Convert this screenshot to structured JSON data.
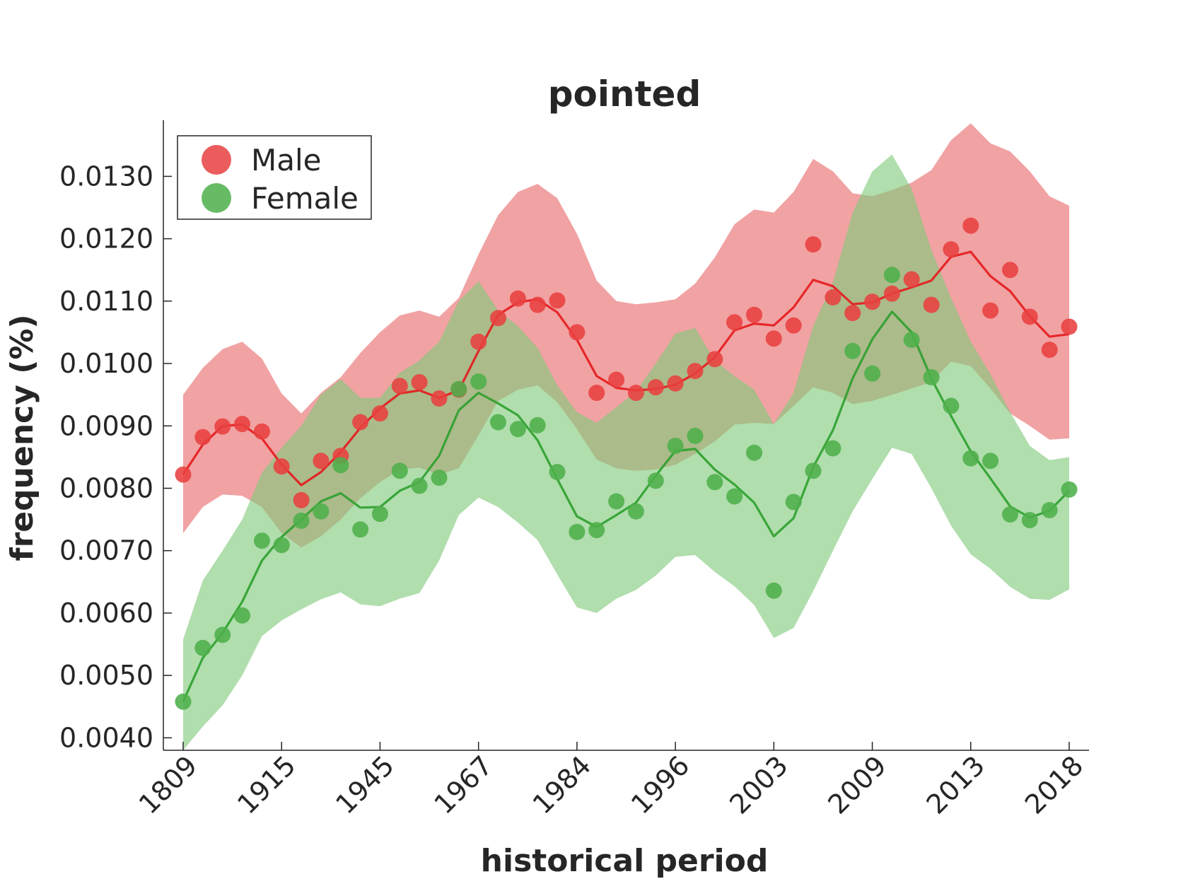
{
  "chart_data": {
    "type": "line",
    "title": "pointed",
    "xlabel": "historical period",
    "ylabel": "frequency (%)",
    "categories": [
      "1809",
      "1915",
      "1945",
      "1967",
      "1984",
      "1996",
      "2003",
      "2009",
      "2013",
      "2018"
    ],
    "ylim": [
      0.0038,
      0.0139
    ],
    "yticks": [
      "0.0040",
      "0.0050",
      "0.0060",
      "0.0070",
      "0.0080",
      "0.0090",
      "0.0100",
      "0.0110",
      "0.0120",
      "0.0130"
    ],
    "grid": false,
    "legend_position": "top-left",
    "series": [
      {
        "name": "Male",
        "color": "#e41a1c",
        "marker_color": "#e8403f",
        "band_color": "#e8696b",
        "points": [
          0.00822,
          0.00882,
          0.00899,
          0.00903,
          0.00891,
          0.00835,
          0.00781,
          0.00844,
          0.00852,
          0.00906,
          0.0092,
          0.00964,
          0.0097,
          0.00944,
          0.00958,
          0.01035,
          0.01073,
          0.01104,
          0.01094,
          0.01101,
          0.0105,
          0.00953,
          0.00974,
          0.00953,
          0.00962,
          0.00968,
          0.00988,
          0.01007,
          0.01066,
          0.01078,
          0.0104,
          0.01061,
          0.01191,
          0.01106,
          0.01081,
          0.01099,
          0.01112,
          0.01135,
          0.01094,
          0.01183,
          0.01221,
          0.01085,
          0.0115,
          0.01075,
          0.01022,
          0.01059
        ],
        "trend": [
          0.00822,
          0.0087,
          0.009,
          0.00902,
          0.0088,
          0.00838,
          0.00805,
          0.00826,
          0.00858,
          0.00897,
          0.00928,
          0.00952,
          0.00957,
          0.00945,
          0.00957,
          0.0102,
          0.01078,
          0.01098,
          0.01103,
          0.01082,
          0.01038,
          0.0098,
          0.00961,
          0.00957,
          0.00959,
          0.00966,
          0.00984,
          0.0101,
          0.01053,
          0.01064,
          0.01061,
          0.0109,
          0.01134,
          0.01124,
          0.01095,
          0.01098,
          0.01112,
          0.01122,
          0.01133,
          0.01171,
          0.01179,
          0.0114,
          0.01116,
          0.01076,
          0.01043,
          0.01047
        ],
        "band_upper": [
          0.0095,
          0.00993,
          0.01023,
          0.01035,
          0.01008,
          0.00952,
          0.0092,
          0.00953,
          0.00978,
          0.01017,
          0.0105,
          0.01077,
          0.01085,
          0.01075,
          0.01105,
          0.01175,
          0.01238,
          0.01275,
          0.01288,
          0.01265,
          0.01208,
          0.01133,
          0.011,
          0.01095,
          0.01098,
          0.01103,
          0.01128,
          0.0117,
          0.01223,
          0.01247,
          0.01242,
          0.01275,
          0.01328,
          0.01308,
          0.01273,
          0.01268,
          0.01278,
          0.0129,
          0.0131,
          0.01358,
          0.01385,
          0.01353,
          0.0134,
          0.01308,
          0.01268,
          0.01253
        ],
        "band_lower": [
          0.00728,
          0.0077,
          0.0079,
          0.00788,
          0.0077,
          0.00728,
          0.00705,
          0.00723,
          0.0075,
          0.00784,
          0.0081,
          0.0083,
          0.00833,
          0.00822,
          0.00832,
          0.00885,
          0.0094,
          0.00958,
          0.00965,
          0.00938,
          0.00895,
          0.00846,
          0.00832,
          0.00828,
          0.0083,
          0.00838,
          0.00855,
          0.00875,
          0.00902,
          0.00905,
          0.00903,
          0.00932,
          0.00962,
          0.00953,
          0.00935,
          0.0094,
          0.0095,
          0.0096,
          0.0097,
          0.01003,
          0.00996,
          0.0096,
          0.0092,
          0.009,
          0.00878,
          0.0088
        ]
      },
      {
        "name": "Female",
        "color": "#2ca02c",
        "marker_color": "#4daf4a",
        "band_color": "#80c97a",
        "points": [
          0.00458,
          0.00544,
          0.00565,
          0.00596,
          0.00716,
          0.00709,
          0.00748,
          0.00763,
          0.00837,
          0.00734,
          0.00759,
          0.00828,
          0.00804,
          0.00817,
          0.00959,
          0.00971,
          0.00906,
          0.00895,
          0.00901,
          0.00826,
          0.0073,
          0.00733,
          0.00779,
          0.00763,
          0.00812,
          0.00868,
          0.00884,
          0.0081,
          0.00787,
          0.00857,
          0.00636,
          0.00778,
          0.00828,
          0.00864,
          0.0102,
          0.00984,
          0.01142,
          0.01038,
          0.00978,
          0.00932,
          0.00848,
          0.00844,
          0.00758,
          0.00749,
          0.00765,
          0.00798
        ],
        "trend": [
          0.00458,
          0.00528,
          0.00568,
          0.00618,
          0.00684,
          0.00722,
          0.0075,
          0.00779,
          0.00792,
          0.00769,
          0.0077,
          0.00796,
          0.0081,
          0.00852,
          0.00925,
          0.00953,
          0.00936,
          0.00917,
          0.00877,
          0.00815,
          0.00755,
          0.00738,
          0.00757,
          0.00777,
          0.0082,
          0.0086,
          0.00863,
          0.0083,
          0.00806,
          0.00777,
          0.00723,
          0.00752,
          0.00834,
          0.00893,
          0.00976,
          0.01039,
          0.01083,
          0.0105,
          0.00976,
          0.00916,
          0.00859,
          0.00816,
          0.00771,
          0.00753,
          0.00764,
          0.00796
        ],
        "band_upper": [
          0.00558,
          0.00652,
          0.007,
          0.0075,
          0.00825,
          0.00865,
          0.009,
          0.0095,
          0.00975,
          0.00945,
          0.00945,
          0.00985,
          0.01005,
          0.01035,
          0.011,
          0.01132,
          0.01085,
          0.0106,
          0.01025,
          0.00965,
          0.00922,
          0.00905,
          0.0093,
          0.00955,
          0.01,
          0.01048,
          0.01057,
          0.01005,
          0.0098,
          0.00958,
          0.00903,
          0.00953,
          0.0106,
          0.0113,
          0.01242,
          0.01308,
          0.01335,
          0.0128,
          0.01182,
          0.01105,
          0.01035,
          0.00983,
          0.00922,
          0.00868,
          0.00845,
          0.0085
        ],
        "band_lower": [
          0.0038,
          0.00418,
          0.00452,
          0.005,
          0.00563,
          0.00588,
          0.00606,
          0.00622,
          0.00633,
          0.00614,
          0.00611,
          0.00623,
          0.00632,
          0.00684,
          0.00757,
          0.00785,
          0.0077,
          0.00745,
          0.00717,
          0.00662,
          0.00609,
          0.006,
          0.00623,
          0.00637,
          0.0066,
          0.0069,
          0.00693,
          0.00666,
          0.00643,
          0.00613,
          0.0056,
          0.00576,
          0.00635,
          0.007,
          0.00763,
          0.00815,
          0.00865,
          0.00855,
          0.008,
          0.0074,
          0.00694,
          0.00671,
          0.00642,
          0.00623,
          0.00621,
          0.00638
        ]
      }
    ]
  }
}
